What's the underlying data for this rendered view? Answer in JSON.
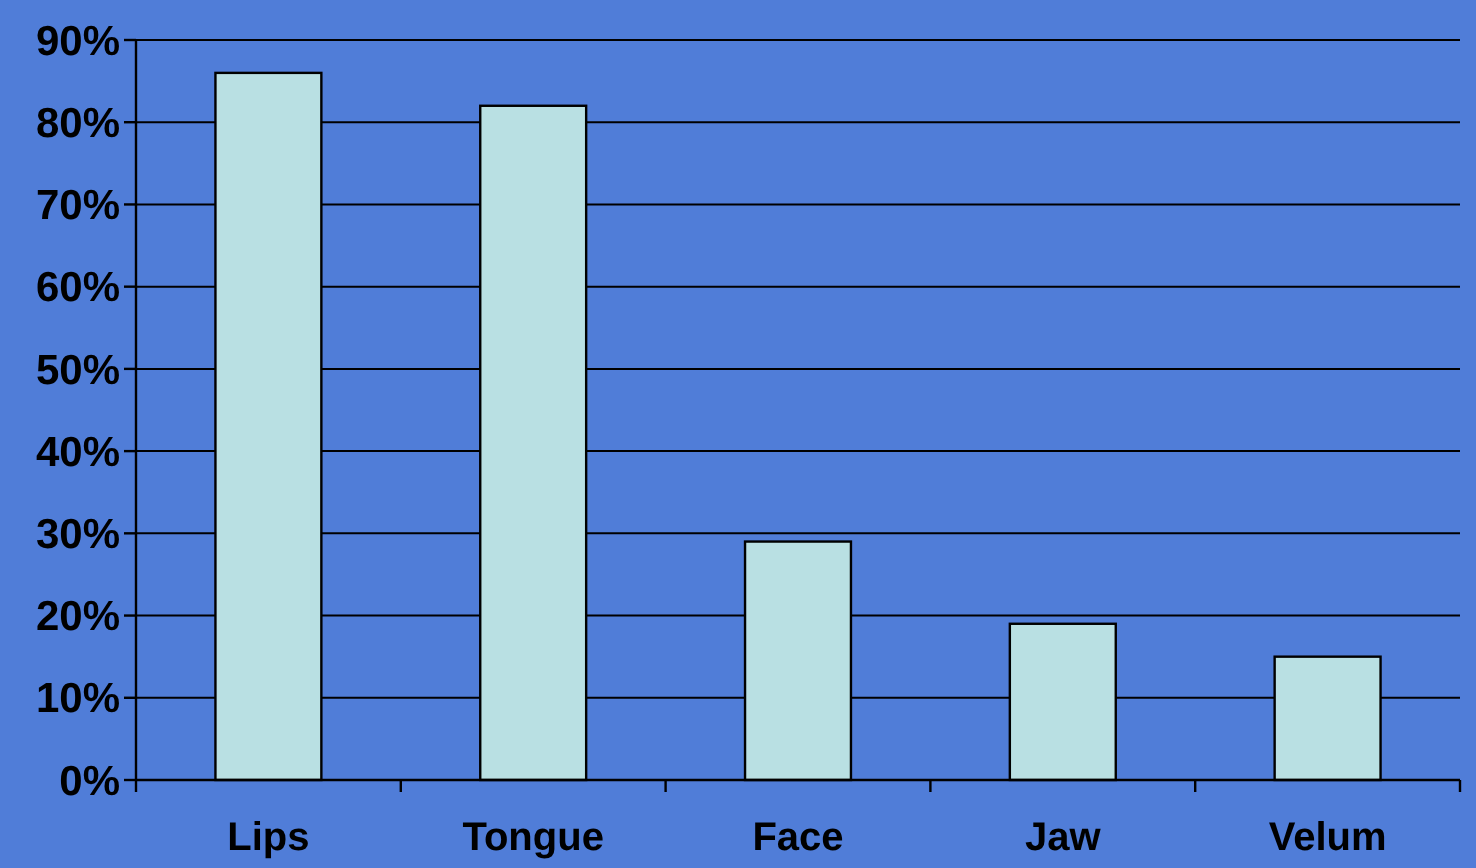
{
  "chart_data": {
    "type": "bar",
    "categories": [
      "Lips",
      "Tongue",
      "Face",
      "Jaw",
      "Velum"
    ],
    "values": [
      86,
      82,
      29,
      19,
      15
    ],
    "color": "#b9e0e3",
    "ylim": [
      0,
      90
    ],
    "yticks": [
      {
        "value": 0,
        "label": "0%"
      },
      {
        "value": 10,
        "label": "10%"
      },
      {
        "value": 20,
        "label": "20%"
      },
      {
        "value": 30,
        "label": "30%"
      },
      {
        "value": 40,
        "label": "40%"
      },
      {
        "value": 50,
        "label": "50%"
      },
      {
        "value": 60,
        "label": "60%"
      },
      {
        "value": 70,
        "label": "70%"
      },
      {
        "value": 80,
        "label": "80%"
      },
      {
        "value": 90,
        "label": "90%"
      }
    ],
    "grid": "y"
  }
}
